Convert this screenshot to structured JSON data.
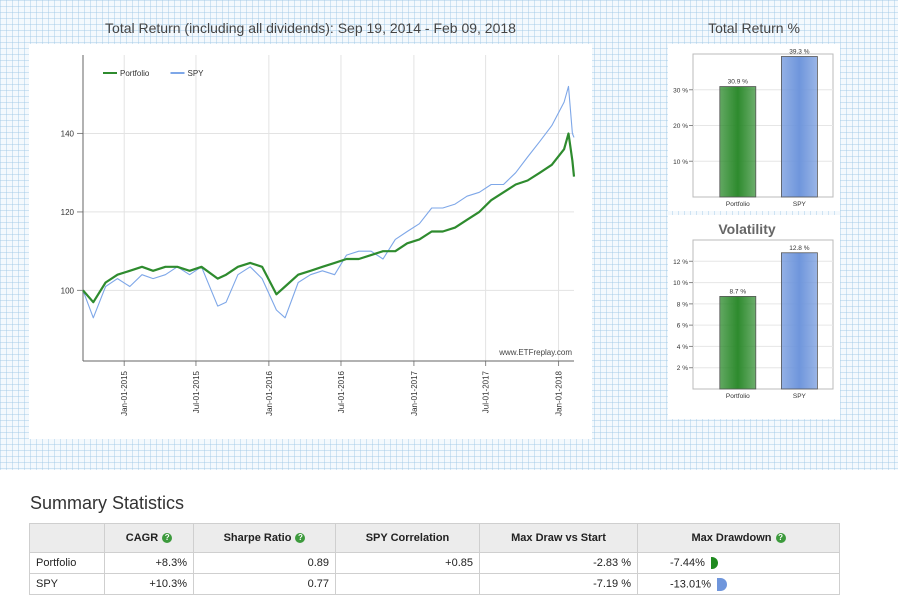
{
  "main_chart": {
    "title": "Total Return (including all dividends): Sep 19, 2014 - Feb 09, 2018",
    "watermark": "www.ETFreplay.com",
    "legend": [
      {
        "name": "Portfolio",
        "color": "#2e8b2e"
      },
      {
        "name": "SPY",
        "color": "#7ea7e8"
      }
    ]
  },
  "chart_data": [
    {
      "type": "line",
      "title": "Total Return (including all dividends): Sep 19, 2014 - Feb 09, 2018",
      "xlabel": "",
      "ylabel": "",
      "x_ticks": [
        "Jan-01-2015",
        "Jul-01-2015",
        "Jan-01-2016",
        "Jul-01-2016",
        "Jan-01-2017",
        "Jul-01-2017",
        "Jan-01-2018"
      ],
      "y_ticks": [
        100,
        120,
        140
      ],
      "xlim": [
        "2014-09-19",
        "2018-02-09"
      ],
      "ylim": [
        82,
        160
      ],
      "grid": true,
      "legend_position": "top-left",
      "series": [
        {
          "name": "Portfolio",
          "color": "#2e8b2e",
          "x": [
            "2014-09-19",
            "2014-10-15",
            "2014-11-15",
            "2014-12-15",
            "2015-01-15",
            "2015-02-15",
            "2015-03-15",
            "2015-04-15",
            "2015-05-15",
            "2015-06-15",
            "2015-07-15",
            "2015-08-25",
            "2015-09-15",
            "2015-10-15",
            "2015-11-15",
            "2015-12-15",
            "2016-01-20",
            "2016-02-11",
            "2016-03-15",
            "2016-04-15",
            "2016-05-15",
            "2016-06-15",
            "2016-07-15",
            "2016-08-15",
            "2016-09-15",
            "2016-10-15",
            "2016-11-15",
            "2016-12-15",
            "2017-01-15",
            "2017-02-15",
            "2017-03-15",
            "2017-04-15",
            "2017-05-15",
            "2017-06-15",
            "2017-07-15",
            "2017-08-15",
            "2017-09-15",
            "2017-10-15",
            "2017-11-15",
            "2017-12-15",
            "2018-01-15",
            "2018-01-26",
            "2018-02-05",
            "2018-02-09"
          ],
          "values": [
            100,
            97,
            102,
            104,
            105,
            106,
            105,
            106,
            106,
            105,
            106,
            103,
            104,
            106,
            107,
            106,
            99,
            101,
            104,
            105,
            106,
            107,
            108,
            108,
            109,
            110,
            110,
            112,
            113,
            115,
            115,
            116,
            118,
            120,
            123,
            125,
            127,
            128,
            130,
            132,
            136,
            140,
            133,
            129
          ]
        },
        {
          "name": "SPY",
          "color": "#7ea7e8",
          "x": [
            "2014-09-19",
            "2014-10-15",
            "2014-11-15",
            "2014-12-15",
            "2015-01-15",
            "2015-02-15",
            "2015-03-15",
            "2015-04-15",
            "2015-05-15",
            "2015-06-15",
            "2015-07-15",
            "2015-08-25",
            "2015-09-15",
            "2015-10-15",
            "2015-11-15",
            "2015-12-15",
            "2016-01-20",
            "2016-02-11",
            "2016-03-15",
            "2016-04-15",
            "2016-05-15",
            "2016-06-15",
            "2016-07-15",
            "2016-08-15",
            "2016-09-15",
            "2016-10-15",
            "2016-11-15",
            "2016-12-15",
            "2017-01-15",
            "2017-02-15",
            "2017-03-15",
            "2017-04-15",
            "2017-05-15",
            "2017-06-15",
            "2017-07-15",
            "2017-08-15",
            "2017-09-15",
            "2017-10-15",
            "2017-11-15",
            "2017-12-15",
            "2018-01-15",
            "2018-01-26",
            "2018-02-05",
            "2018-02-09"
          ],
          "values": [
            100,
            93,
            101,
            103,
            101,
            104,
            103,
            104,
            106,
            104,
            106,
            96,
            97,
            104,
            106,
            103,
            95,
            93,
            102,
            104,
            105,
            104,
            109,
            110,
            110,
            108,
            113,
            115,
            117,
            121,
            121,
            122,
            124,
            125,
            127,
            127,
            130,
            134,
            138,
            142,
            148,
            152,
            140,
            139
          ]
        }
      ]
    },
    {
      "type": "bar",
      "title": "Total Return %",
      "categories": [
        "Portfolio",
        "SPY"
      ],
      "values": [
        30.9,
        39.3
      ],
      "data_labels": [
        "30.9 %",
        "39.3 %"
      ],
      "y_ticks": [
        "10 %",
        "20 %",
        "30 %"
      ],
      "ylim": [
        0,
        40
      ],
      "colors": [
        "#2e8b2e",
        "#6f96dc"
      ]
    },
    {
      "type": "bar",
      "title": "Volatility",
      "categories": [
        "Portfolio",
        "SPY"
      ],
      "values": [
        8.7,
        12.8
      ],
      "data_labels": [
        "8.7 %",
        "12.8 %"
      ],
      "y_ticks": [
        "2 %",
        "4 %",
        "6 %",
        "8 %",
        "10 %",
        "12 %"
      ],
      "ylim": [
        0,
        14
      ],
      "colors": [
        "#2e8b2e",
        "#6f96dc"
      ]
    }
  ],
  "summary": {
    "title": "Summary Statistics",
    "columns": [
      "CAGR",
      "Sharpe Ratio",
      "SPY Correlation",
      "Max Draw vs Start",
      "Max Drawdown"
    ],
    "help_icon": "question-icon",
    "rows": [
      {
        "name": "Portfolio",
        "cagr": "+8.3%",
        "sharpe": "0.89",
        "correlation": "+0.85",
        "max_draw_start": "-2.83 %",
        "max_drawdown": "-7.44%",
        "color": "#2e8b2e"
      },
      {
        "name": "SPY",
        "cagr": "+10.3%",
        "sharpe": "0.77",
        "correlation": "",
        "max_draw_start": "-7.19 %",
        "max_drawdown": "-13.01%",
        "color": "#6f96dc"
      }
    ]
  }
}
